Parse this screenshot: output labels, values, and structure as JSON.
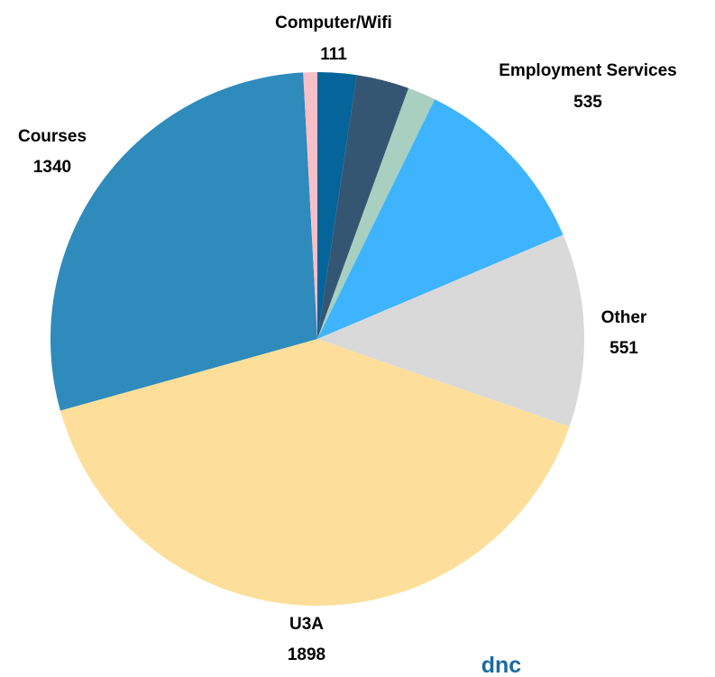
{
  "chart_data": {
    "type": "pie",
    "start": "12 o'clock",
    "direction": "clockwise",
    "slices": [
      {
        "label": "Computer/Wifi",
        "value": 111,
        "color": "#05649a",
        "show_label": true
      },
      {
        "label": "",
        "value": 150,
        "color": "#355673",
        "show_label": false
      },
      {
        "label": "",
        "value": 80,
        "color": "#a8cfc0",
        "show_label": false
      },
      {
        "label": "Employment Services",
        "value": 535,
        "color": "#3db4fd",
        "show_label": true
      },
      {
        "label": "Other",
        "value": 551,
        "color": "#d9d9d9",
        "show_label": true
      },
      {
        "label": "U3A",
        "value": 1898,
        "color": "#fddf9b",
        "show_label": true
      },
      {
        "label": "Courses",
        "value": 1340,
        "color": "#2f8bbb",
        "show_label": true
      },
      {
        "label": "",
        "value": 40,
        "color": "#f7bfc7",
        "show_label": false
      }
    ]
  },
  "brand": {
    "text": "dnc",
    "color": "#1b6aa0"
  }
}
